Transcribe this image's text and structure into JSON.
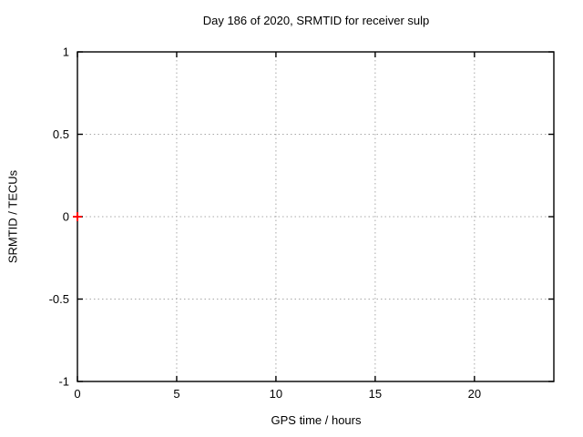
{
  "title": "Day 186 of 2020, SRMTID for receiver sulp",
  "chart_data": {
    "type": "scatter",
    "title": "Day 186 of 2020, SRMTID for receiver sulp",
    "xlabel": "GPS time / hours",
    "ylabel": "SRMTID / TECUs",
    "xlim": [
      0,
      24
    ],
    "ylim": [
      -1,
      1
    ],
    "xticks": [
      0,
      5,
      10,
      15,
      20
    ],
    "yticks": [
      -1,
      -0.5,
      0,
      0.5,
      1
    ],
    "grid": true,
    "grid_style": "dotted",
    "legend": "none",
    "series": [
      {
        "name": "SRMTID",
        "marker": "plus",
        "color": "#ff0000",
        "points": [
          {
            "x": 0,
            "y": 0
          }
        ]
      }
    ],
    "colors": {
      "background": "#ffffff",
      "frame": "#000000",
      "grid": "#a8a8a8",
      "text": "#000000",
      "marker": "#ff0000"
    }
  }
}
